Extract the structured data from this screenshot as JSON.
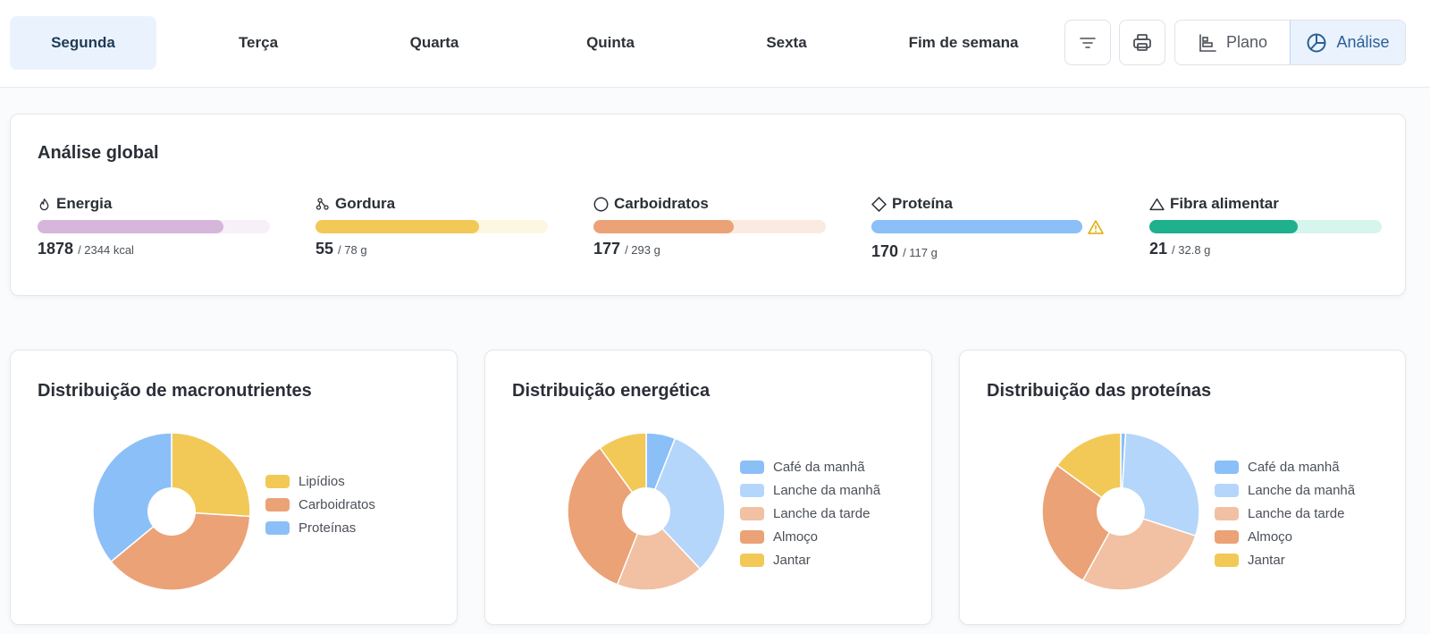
{
  "tabs": [
    {
      "label": "Segunda",
      "active": true
    },
    {
      "label": "Terça",
      "active": false
    },
    {
      "label": "Quarta",
      "active": false
    },
    {
      "label": "Quinta",
      "active": false
    },
    {
      "label": "Sexta",
      "active": false
    },
    {
      "label": "Fim de semana",
      "active": false
    }
  ],
  "toolbar": {
    "filter_icon": "filter-icon",
    "print_icon": "printer-icon",
    "plano_label": "Plano",
    "analise_label": "Análise"
  },
  "global": {
    "title": "Análise global",
    "metrics": [
      {
        "label": "Energia",
        "icon": "flame-icon",
        "value": "1878",
        "target": "/ 2344 kcal",
        "fraction": 0.801,
        "color": "#d7b6dc",
        "track": "#f7f0f8",
        "warning": false
      },
      {
        "label": "Gordura",
        "icon": "molecule-icon",
        "value": "55",
        "target": "/ 78 g",
        "fraction": 0.705,
        "color": "#f2c957",
        "track": "#fdf6e1",
        "warning": false
      },
      {
        "label": "Carboidratos",
        "icon": "circle-icon",
        "value": "177",
        "target": "/ 293 g",
        "fraction": 0.604,
        "color": "#eba276",
        "track": "#fbeae0",
        "warning": false
      },
      {
        "label": "Proteína",
        "icon": "diamond-icon",
        "value": "170",
        "target": "/ 117 g",
        "fraction": 1.0,
        "color": "#8bbff7",
        "track": "#e8f2fd",
        "warning": true
      },
      {
        "label": "Fibra alimentar",
        "icon": "triangle-icon",
        "value": "21",
        "target": "/ 32.8 g",
        "fraction": 0.64,
        "color": "#1fb08d",
        "track": "#d6f5ec",
        "warning": false
      }
    ]
  },
  "charts": [
    {
      "title": "Distribuição de macronutrientes",
      "legend": [
        {
          "label": "Lipídios",
          "color": "#f2c957"
        },
        {
          "label": "Carboidratos",
          "color": "#eba276"
        },
        {
          "label": "Proteínas",
          "color": "#8bbff7"
        }
      ]
    },
    {
      "title": "Distribuição energética",
      "legend": [
        {
          "label": "Café da manhã",
          "color": "#8bbff7"
        },
        {
          "label": "Lanche da manhã",
          "color": "#b5d6fb"
        },
        {
          "label": "Lanche da tarde",
          "color": "#f2c0a2"
        },
        {
          "label": "Almoço",
          "color": "#eba276"
        },
        {
          "label": "Jantar",
          "color": "#f2c957"
        }
      ]
    },
    {
      "title": "Distribuição das proteínas",
      "legend": [
        {
          "label": "Café da manhã",
          "color": "#8bbff7"
        },
        {
          "label": "Lanche da manhã",
          "color": "#b5d6fb"
        },
        {
          "label": "Lanche da tarde",
          "color": "#f2c0a2"
        },
        {
          "label": "Almoço",
          "color": "#eba276"
        },
        {
          "label": "Jantar",
          "color": "#f2c957"
        }
      ]
    }
  ],
  "chart_data": [
    {
      "type": "pie",
      "title": "Distribuição de macronutrientes",
      "categories": [
        "Lipídios",
        "Carboidratos",
        "Proteínas"
      ],
      "values": [
        26,
        38,
        36
      ],
      "colors": [
        "#f2c957",
        "#eba276",
        "#8bbff7"
      ]
    },
    {
      "type": "pie",
      "title": "Distribuição energética",
      "categories": [
        "Café da manhã",
        "Lanche da manhã",
        "Lanche da tarde",
        "Almoço",
        "Jantar"
      ],
      "values": [
        6,
        32,
        18,
        34,
        10
      ],
      "colors": [
        "#8bbff7",
        "#b5d6fb",
        "#f2c0a2",
        "#eba276",
        "#f2c957"
      ]
    },
    {
      "type": "pie",
      "title": "Distribuição das proteínas",
      "categories": [
        "Café da manhã",
        "Lanche da manhã",
        "Lanche da tarde",
        "Almoço",
        "Jantar"
      ],
      "values": [
        1,
        29,
        28,
        27,
        15
      ],
      "colors": [
        "#8bbff7",
        "#b5d6fb",
        "#f2c0a2",
        "#eba276",
        "#f2c957"
      ]
    }
  ]
}
